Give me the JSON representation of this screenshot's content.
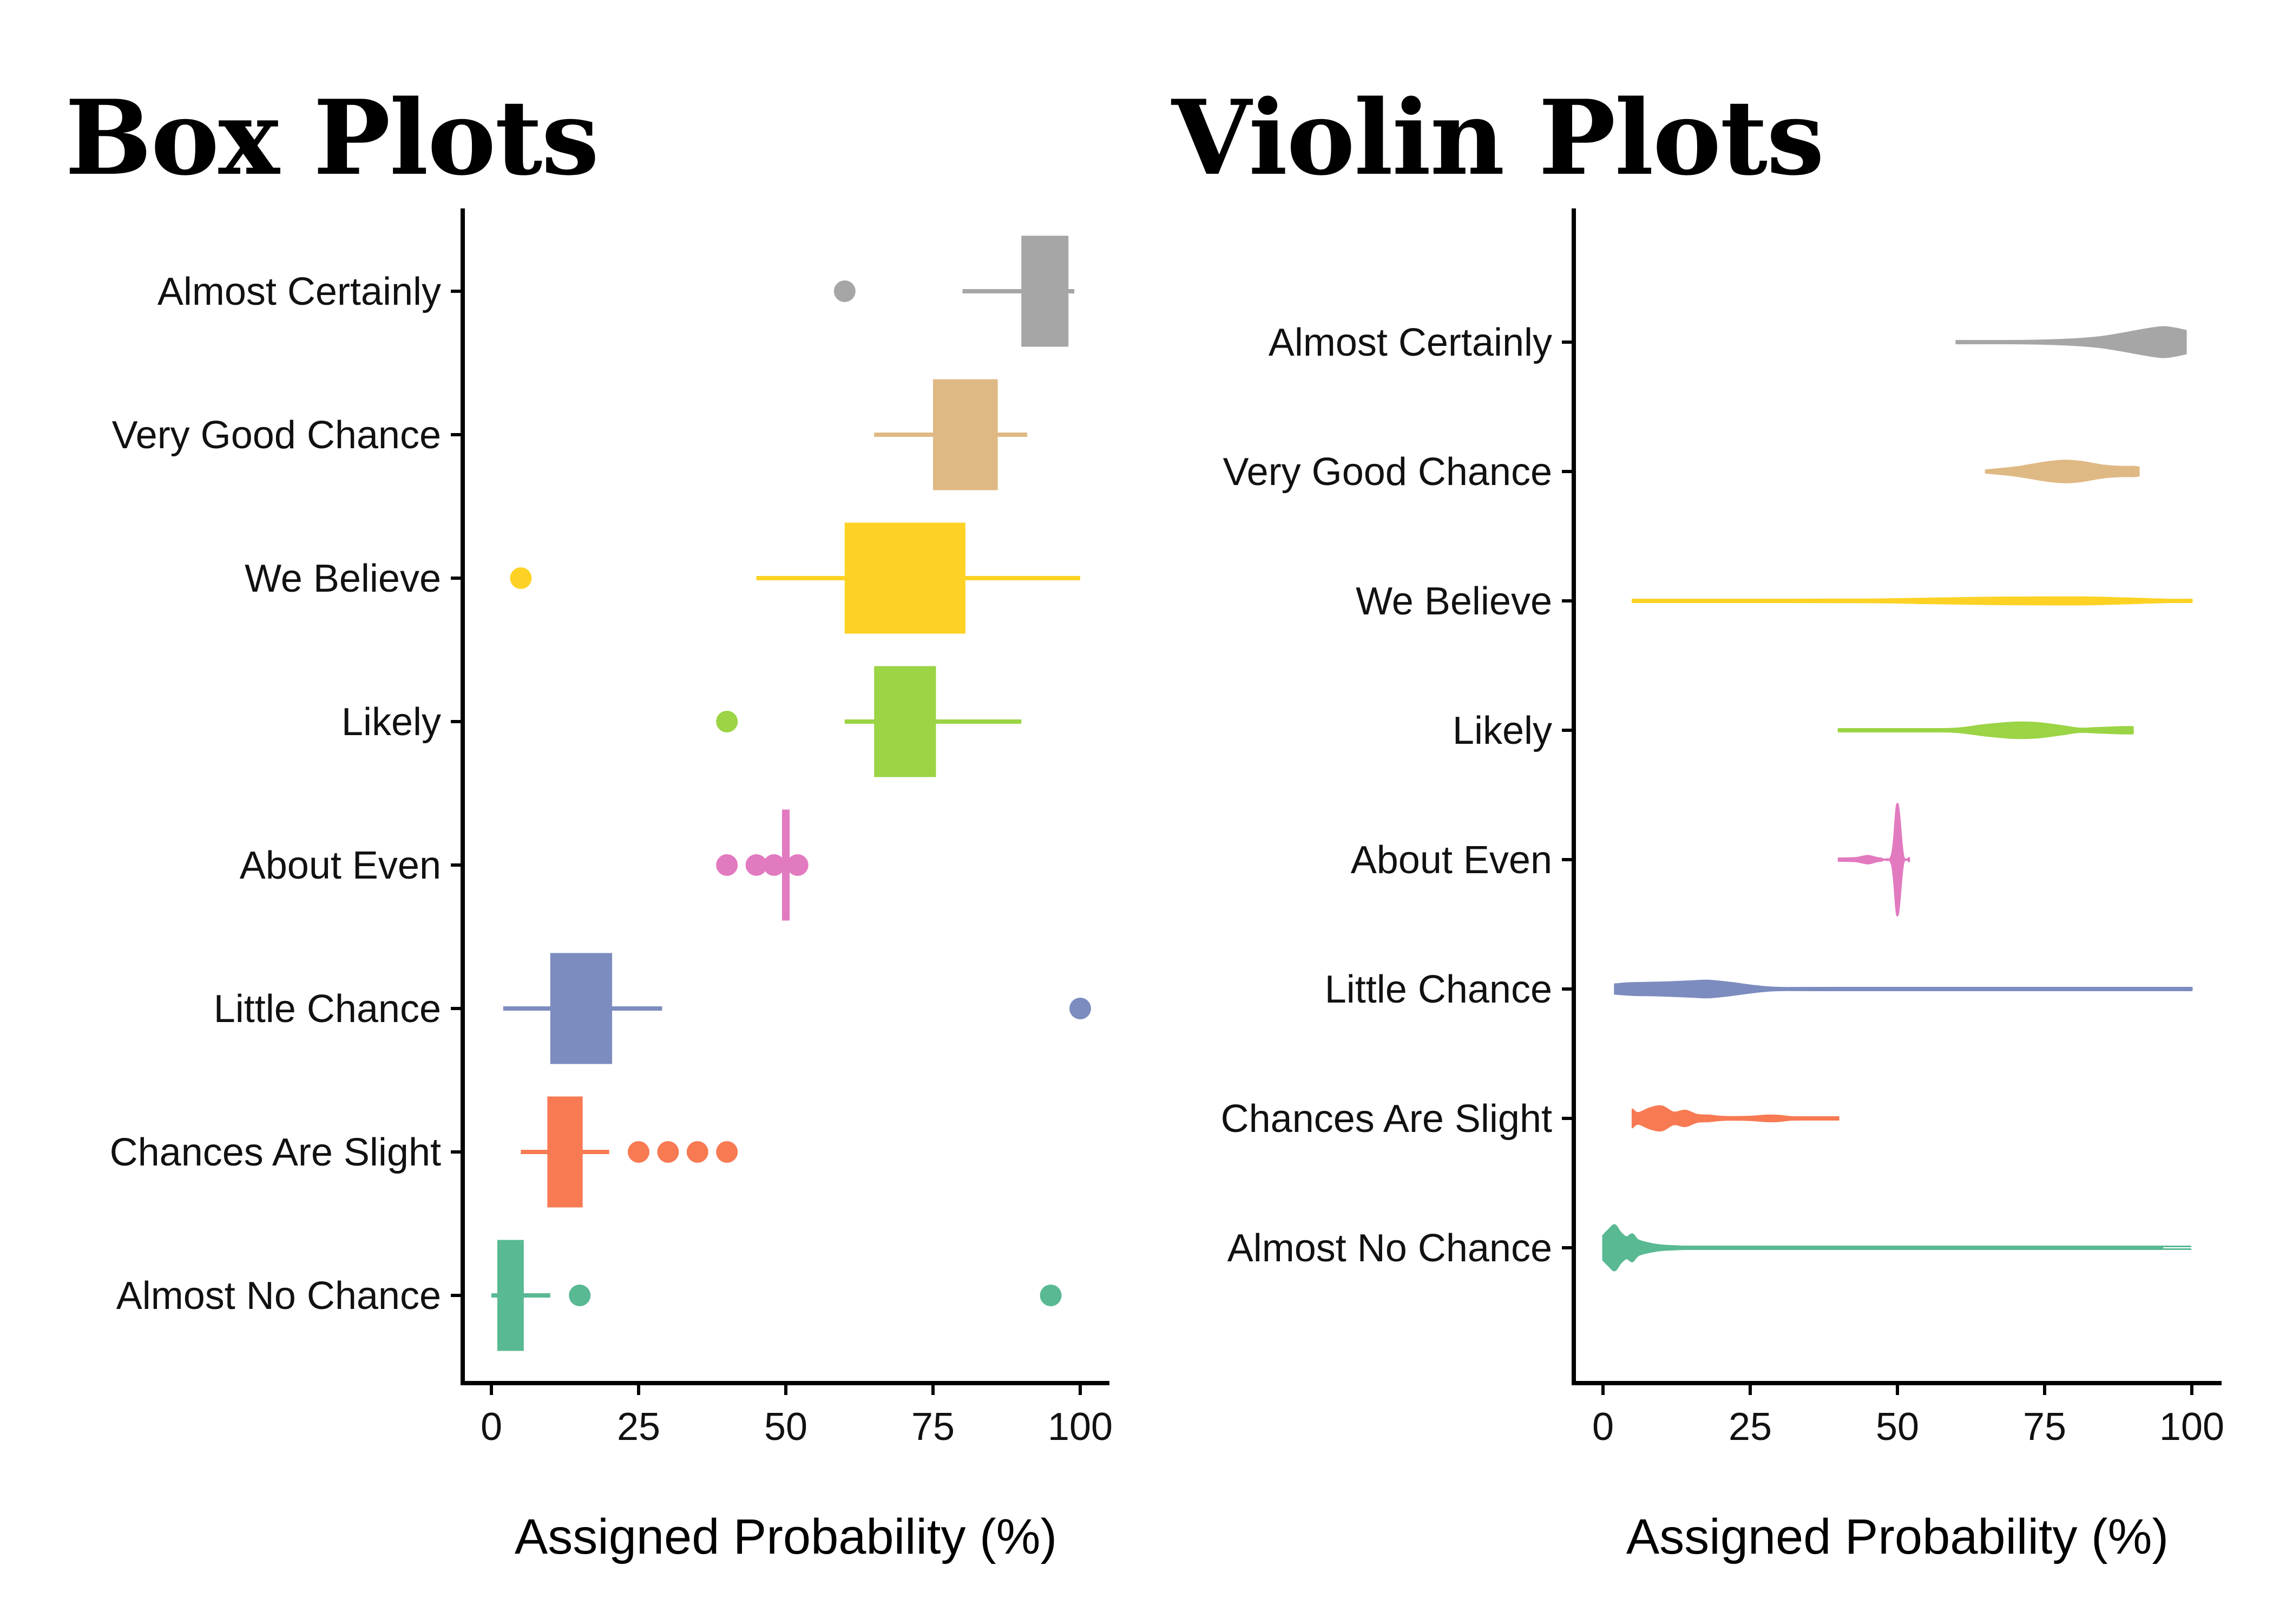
{
  "chart_data": [
    {
      "type": "box",
      "title": "Box Plots",
      "xlabel": "Assigned Probability (%)",
      "ylabel": "",
      "xlim": [
        0,
        100
      ],
      "xticks": [
        0,
        25,
        50,
        75,
        100
      ],
      "grid": false,
      "categories": [
        "Almost Certainly",
        "Very Good Chance",
        "We Believe",
        "Likely",
        "About Even",
        "Little Chance",
        "Chances Are Slight",
        "Almost No Chance"
      ],
      "series": [
        {
          "category": "Almost Certainly",
          "color": "#a6a6a6",
          "whisker_low": 80,
          "q1": 90,
          "median": 95,
          "q3": 98,
          "whisker_high": 99,
          "outliers": [
            60
          ]
        },
        {
          "category": "Very Good Chance",
          "color": "#dfb984",
          "whisker_low": 65,
          "q1": 75,
          "median": 80,
          "q3": 86,
          "whisker_high": 91,
          "outliers": []
        },
        {
          "category": "We Believe",
          "color": "#fdd224",
          "whisker_low": 45,
          "q1": 60,
          "median": 75,
          "q3": 80.5,
          "whisker_high": 100,
          "outliers": [
            5
          ]
        },
        {
          "category": "Likely",
          "color": "#9bd444",
          "whisker_low": 60,
          "q1": 65,
          "median": 70,
          "q3": 75.5,
          "whisker_high": 90,
          "outliers": [
            40
          ]
        },
        {
          "category": "About Even",
          "color": "#e27ac0",
          "whisker_low": 50,
          "q1": 50,
          "median": 50,
          "q3": 50,
          "whisker_high": 50,
          "outliers": [
            40,
            45,
            48,
            52
          ]
        },
        {
          "category": "Little Chance",
          "color": "#7c8cbf",
          "whisker_low": 2,
          "q1": 10,
          "median": 15,
          "q3": 20.5,
          "whisker_high": 29,
          "outliers": [
            100
          ]
        },
        {
          "category": "Chances Are Slight",
          "color": "#f77a53",
          "whisker_low": 5,
          "q1": 9.5,
          "median": 10,
          "q3": 15.5,
          "whisker_high": 20,
          "outliers": [
            25,
            30,
            35,
            40
          ]
        },
        {
          "category": "Almost No Chance",
          "color": "#58b993",
          "whisker_low": 0,
          "q1": 1,
          "median": 3,
          "q3": 5.5,
          "whisker_high": 10,
          "outliers": [
            15,
            95
          ]
        }
      ]
    },
    {
      "type": "violin",
      "title": "Violin Plots",
      "xlabel": "Assigned Probability (%)",
      "ylabel": "",
      "xlim": [
        0,
        100
      ],
      "xticks": [
        0,
        25,
        50,
        75,
        100
      ],
      "grid": false,
      "categories": [
        "Almost Certainly",
        "Very Good Chance",
        "We Believe",
        "Likely",
        "About Even",
        "Little Chance",
        "Chances Are Slight",
        "Almost No Chance"
      ],
      "series": [
        {
          "category": "Almost Certainly",
          "color": "#a6a6a6",
          "profile": [
            [
              60,
              0.02
            ],
            [
              70,
              0.04
            ],
            [
              78,
              0.08
            ],
            [
              84,
              0.16
            ],
            [
              88,
              0.28
            ],
            [
              92,
              0.42
            ],
            [
              95,
              0.5
            ],
            [
              97,
              0.46
            ],
            [
              98,
              0.42
            ],
            [
              99,
              0.38
            ]
          ]
        },
        {
          "category": "Very Good Chance",
          "color": "#dfb984",
          "profile": [
            [
              65,
              0.04
            ],
            [
              70,
              0.14
            ],
            [
              75,
              0.3
            ],
            [
              78,
              0.36
            ],
            [
              81,
              0.33
            ],
            [
              85,
              0.2
            ],
            [
              88,
              0.16
            ],
            [
              90,
              0.16
            ],
            [
              91,
              0.14
            ]
          ]
        },
        {
          "category": "We Believe",
          "color": "#fdd224",
          "profile": [
            [
              5,
              0.01
            ],
            [
              30,
              0.02
            ],
            [
              45,
              0.05
            ],
            [
              55,
              0.08
            ],
            [
              65,
              0.11
            ],
            [
              75,
              0.12
            ],
            [
              82,
              0.12
            ],
            [
              90,
              0.08
            ],
            [
              96,
              0.04
            ],
            [
              100,
              0.02
            ]
          ]
        },
        {
          "category": "Likely",
          "color": "#9bd444",
          "profile": [
            [
              40,
              0.02
            ],
            [
              55,
              0.02
            ],
            [
              60,
              0.06
            ],
            [
              65,
              0.18
            ],
            [
              70,
              0.26
            ],
            [
              74,
              0.24
            ],
            [
              78,
              0.14
            ],
            [
              81,
              0.06
            ],
            [
              84,
              0.08
            ],
            [
              88,
              0.11
            ],
            [
              90,
              0.11
            ]
          ]
        },
        {
          "category": "About Even",
          "color": "#e27ac0",
          "profile": [
            [
              40,
              0.02
            ],
            [
              43,
              0.06
            ],
            [
              45,
              0.13
            ],
            [
              47,
              0.05
            ],
            [
              49,
              0.14
            ],
            [
              50,
              1.85
            ],
            [
              51,
              0.14
            ],
            [
              52,
              0.06
            ]
          ]
        },
        {
          "category": "Little Chance",
          "color": "#7c8cbf",
          "profile": [
            [
              2,
              0.16
            ],
            [
              5,
              0.2
            ],
            [
              10,
              0.22
            ],
            [
              15,
              0.26
            ],
            [
              18,
              0.28
            ],
            [
              22,
              0.2
            ],
            [
              26,
              0.1
            ],
            [
              30,
              0.04
            ],
            [
              40,
              0.01
            ],
            [
              100,
              0.01
            ]
          ]
        },
        {
          "category": "Chances Are Slight",
          "color": "#f77a53",
          "profile": [
            [
              5,
              0.3
            ],
            [
              6,
              0.18
            ],
            [
              8,
              0.34
            ],
            [
              10,
              0.4
            ],
            [
              12,
              0.2
            ],
            [
              14,
              0.26
            ],
            [
              16,
              0.12
            ],
            [
              18,
              0.1
            ],
            [
              20,
              0.06
            ],
            [
              22,
              0.05
            ],
            [
              25,
              0.06
            ],
            [
              28,
              0.1
            ],
            [
              30,
              0.09
            ],
            [
              32,
              0.05
            ],
            [
              35,
              0.03
            ],
            [
              38,
              0.03
            ],
            [
              40,
              0.03
            ]
          ]
        },
        {
          "category": "Almost No Chance",
          "color": "#58b993",
          "profile": [
            [
              0,
              0.4
            ],
            [
              1,
              0.6
            ],
            [
              2,
              0.75
            ],
            [
              3,
              0.5
            ],
            [
              4,
              0.35
            ],
            [
              5,
              0.45
            ],
            [
              6,
              0.25
            ],
            [
              8,
              0.14
            ],
            [
              10,
              0.08
            ],
            [
              12,
              0.06
            ],
            [
              14,
              0.04
            ],
            [
              16,
              0.03
            ],
            [
              20,
              0.01
            ],
            [
              94,
              0.01
            ],
            [
              95,
              0.02
            ]
          ]
        }
      ]
    }
  ]
}
